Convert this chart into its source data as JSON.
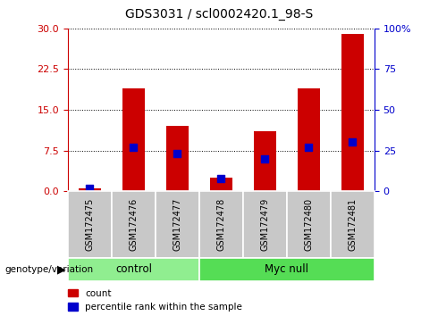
{
  "title": "GDS3031 / scl0002420.1_98-S",
  "samples": [
    "GSM172475",
    "GSM172476",
    "GSM172477",
    "GSM172478",
    "GSM172479",
    "GSM172480",
    "GSM172481"
  ],
  "counts": [
    0.5,
    19.0,
    12.0,
    2.5,
    11.0,
    19.0,
    29.0
  ],
  "percentiles": [
    2.0,
    27.0,
    23.0,
    8.0,
    20.0,
    27.0,
    30.0
  ],
  "groups": [
    {
      "label": "control",
      "start": 0,
      "end": 3,
      "color": "#90EE90"
    },
    {
      "label": "Myc null",
      "start": 3,
      "end": 7,
      "color": "#55DD55"
    }
  ],
  "left_ylim": [
    0,
    30
  ],
  "left_yticks": [
    0,
    7.5,
    15,
    22.5,
    30
  ],
  "right_ylim": [
    0,
    100
  ],
  "right_yticks": [
    0,
    25,
    50,
    75,
    100
  ],
  "right_yticklabels": [
    "0",
    "25",
    "50",
    "75",
    "100%"
  ],
  "bar_color": "#CC0000",
  "dot_color": "#0000CC",
  "bar_width": 0.5,
  "dot_size": 30,
  "bg_color": "#FFFFFF",
  "plot_bg": "#FFFFFF",
  "xticklabel_bg": "#C8C8C8",
  "legend_count_label": "count",
  "legend_pct_label": "percentile rank within the sample",
  "genotype_label": "genotype/variation"
}
